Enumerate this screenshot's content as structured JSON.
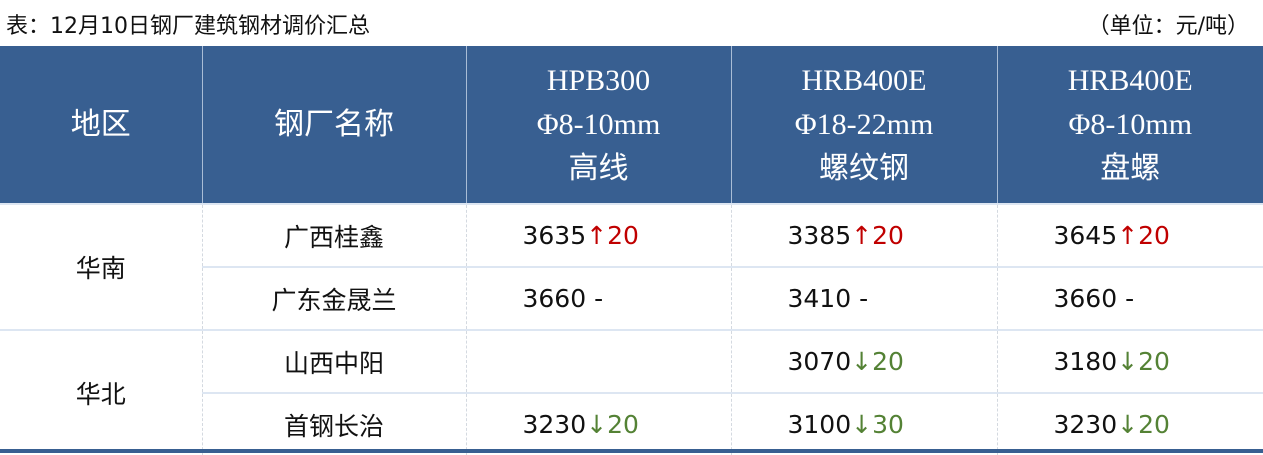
{
  "title": "表：12月10日钢厂建筑钢材调价汇总",
  "unit": "（单位：元/吨）",
  "headers": [
    [
      "地区"
    ],
    [
      "钢厂名称"
    ],
    [
      "HPB300",
      "Φ8-10mm",
      "高线"
    ],
    [
      "HRB400E",
      "Φ18-22mm",
      "螺纹钢"
    ],
    [
      "HRB400E",
      "Φ8-10mm",
      "盘螺"
    ]
  ],
  "colors": {
    "header": "#385f91",
    "up": "#c00000",
    "down": "#548235"
  },
  "rows": [
    {
      "region": "华南",
      "mill": "广西桂鑫",
      "cells": [
        {
          "price": "3635",
          "arrow": "↑",
          "change": "20",
          "dir": "up"
        },
        {
          "price": "3385",
          "arrow": "↑",
          "change": "20",
          "dir": "up"
        },
        {
          "price": "3645",
          "arrow": "↑",
          "change": "20",
          "dir": "up"
        }
      ]
    },
    {
      "mill": "广东金晟兰",
      "cells": [
        {
          "price": "3660",
          "arrow": "",
          "change": " -",
          "dir": "flat"
        },
        {
          "price": "3410",
          "arrow": "",
          "change": " -",
          "dir": "flat"
        },
        {
          "price": "3660",
          "arrow": "",
          "change": " -",
          "dir": "flat"
        }
      ]
    },
    {
      "region": "华北",
      "mill": "山西中阳",
      "cells": [
        {
          "price": "",
          "arrow": "",
          "change": "",
          "dir": "flat"
        },
        {
          "price": "3070",
          "arrow": "↓",
          "change": "20",
          "dir": "down"
        },
        {
          "price": "3180",
          "arrow": "↓",
          "change": "20",
          "dir": "down"
        }
      ]
    },
    {
      "mill": "首钢长治",
      "cells": [
        {
          "price": "3230",
          "arrow": "↓",
          "change": "20",
          "dir": "down"
        },
        {
          "price": "3100",
          "arrow": "↓",
          "change": "30",
          "dir": "down"
        },
        {
          "price": "3230",
          "arrow": "↓",
          "change": "20",
          "dir": "down"
        }
      ]
    }
  ]
}
